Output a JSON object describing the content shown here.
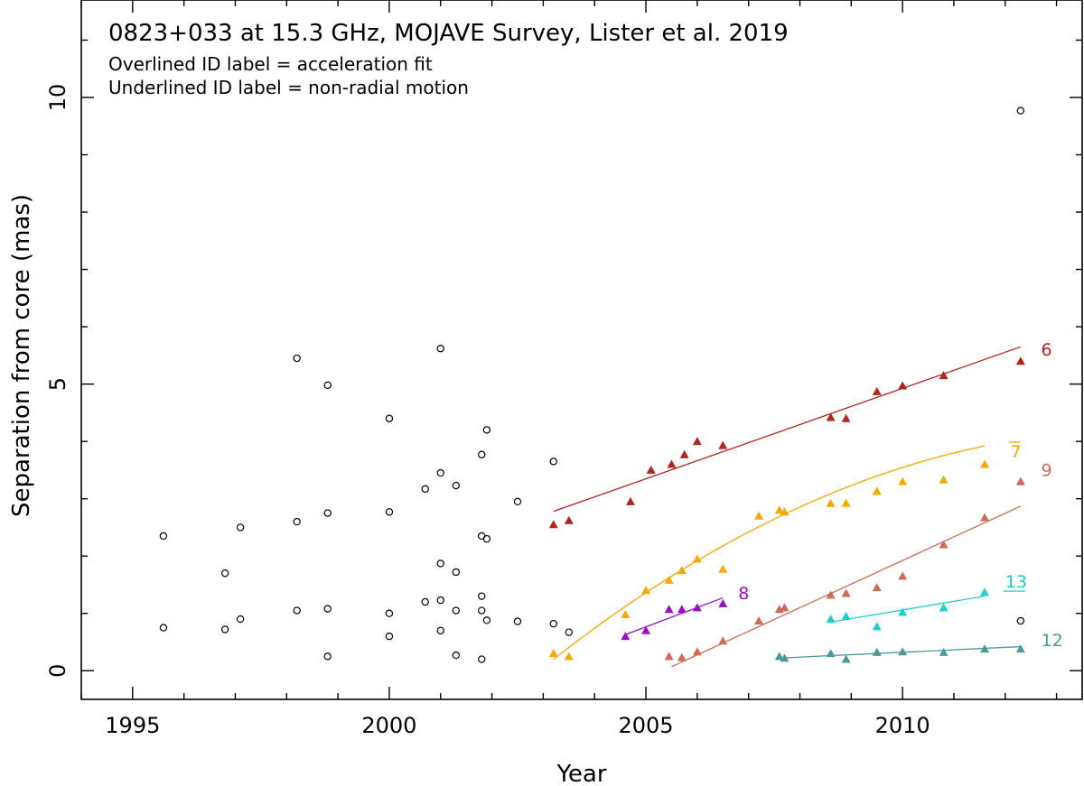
{
  "chart_data": {
    "type": "scatter",
    "title": "0823+033 at 15.3 GHz, MOJAVE Survey, Lister et al. 2019",
    "subtitle_lines": [
      "Overlined ID label = acceleration fit",
      "Underlined ID label = non-radial motion"
    ],
    "xlabel": "Year",
    "ylabel": "Separation from core (mas)",
    "xlim": [
      1994.0,
      2013.5
    ],
    "ylim": [
      -0.5,
      11.7
    ],
    "xticks": [
      1995,
      2000,
      2005,
      2010
    ],
    "yticks": [
      0,
      5,
      10
    ],
    "unassigned": {
      "name": "unassigned components",
      "marker": "open-circle",
      "color": "#000000",
      "points": [
        [
          1995.6,
          0.75
        ],
        [
          1995.6,
          2.35
        ],
        [
          1996.8,
          0.72
        ],
        [
          1996.8,
          1.7
        ],
        [
          1997.1,
          0.9
        ],
        [
          1997.1,
          2.5
        ],
        [
          1998.2,
          1.05
        ],
        [
          1998.2,
          2.6
        ],
        [
          1998.2,
          5.45
        ],
        [
          1998.8,
          0.25
        ],
        [
          1998.8,
          1.08
        ],
        [
          1998.8,
          2.75
        ],
        [
          1998.8,
          4.98
        ],
        [
          2000.0,
          0.6
        ],
        [
          2000.0,
          1.0
        ],
        [
          2000.0,
          2.77
        ],
        [
          2000.0,
          4.4
        ],
        [
          2000.7,
          1.2
        ],
        [
          2000.7,
          3.17
        ],
        [
          2001.0,
          0.7
        ],
        [
          2001.0,
          1.23
        ],
        [
          2001.0,
          1.87
        ],
        [
          2001.0,
          3.45
        ],
        [
          2001.0,
          5.62
        ],
        [
          2001.3,
          0.27
        ],
        [
          2001.3,
          1.05
        ],
        [
          2001.3,
          1.72
        ],
        [
          2001.3,
          3.23
        ],
        [
          2001.8,
          0.2
        ],
        [
          2001.8,
          1.05
        ],
        [
          2001.8,
          1.3
        ],
        [
          2001.8,
          2.35
        ],
        [
          2001.8,
          3.77
        ],
        [
          2001.9,
          0.88
        ],
        [
          2001.9,
          2.3
        ],
        [
          2001.9,
          4.2
        ],
        [
          2002.5,
          0.86
        ],
        [
          2002.5,
          2.95
        ],
        [
          2003.2,
          0.82
        ],
        [
          2003.2,
          3.65
        ],
        [
          2003.5,
          0.67
        ],
        [
          2012.3,
          0.87
        ],
        [
          2012.3,
          9.77
        ]
      ]
    },
    "series": [
      {
        "name": "6",
        "label": "6",
        "label_style": "plain",
        "color": "#b5231f",
        "points": [
          [
            2003.2,
            2.55
          ],
          [
            2003.5,
            2.62
          ],
          [
            2004.7,
            2.95
          ],
          [
            2005.1,
            3.5
          ],
          [
            2005.5,
            3.6
          ],
          [
            2005.75,
            3.77
          ],
          [
            2006.0,
            4.0
          ],
          [
            2006.5,
            3.93
          ],
          [
            2008.6,
            4.42
          ],
          [
            2008.9,
            4.4
          ],
          [
            2009.5,
            4.87
          ],
          [
            2010.0,
            4.97
          ],
          [
            2010.8,
            5.15
          ],
          [
            2012.3,
            5.4
          ]
        ],
        "fit": {
          "kind": "linear",
          "x": [
            2003.2,
            2012.3
          ],
          "y": [
            2.78,
            5.65
          ]
        },
        "label_pos": [
          2012.7,
          5.5
        ]
      },
      {
        "name": "7",
        "label": "7",
        "label_style": "overline",
        "color": "#f5a800",
        "points": [
          [
            2003.2,
            0.3
          ],
          [
            2003.5,
            0.25
          ],
          [
            2004.6,
            0.98
          ],
          [
            2005.0,
            1.4
          ],
          [
            2005.45,
            1.58
          ],
          [
            2005.7,
            1.75
          ],
          [
            2006.0,
            1.95
          ],
          [
            2006.5,
            1.77
          ],
          [
            2007.2,
            2.7
          ],
          [
            2007.6,
            2.8
          ],
          [
            2007.7,
            2.77
          ],
          [
            2008.6,
            2.92
          ],
          [
            2008.9,
            2.92
          ],
          [
            2009.5,
            3.13
          ],
          [
            2010.0,
            3.3
          ],
          [
            2010.8,
            3.33
          ],
          [
            2011.6,
            3.6
          ]
        ],
        "fit": {
          "kind": "quadratic",
          "coef": [
            0.2,
            0.7,
            -0.0306
          ],
          "x0": 2003.2,
          "x": [
            2003.2,
            2011.6
          ]
        },
        "label_pos": [
          2012.1,
          3.72
        ]
      },
      {
        "name": "8",
        "label": "8",
        "label_style": "plain",
        "color": "#9b0fc9",
        "points": [
          [
            2004.6,
            0.6
          ],
          [
            2005.0,
            0.7
          ],
          [
            2005.45,
            1.07
          ],
          [
            2005.7,
            1.07
          ],
          [
            2006.0,
            1.1
          ],
          [
            2006.5,
            1.17
          ]
        ],
        "fit": {
          "kind": "linear",
          "x": [
            2004.6,
            2006.5
          ],
          "y": [
            0.63,
            1.27
          ]
        },
        "label_pos": [
          2006.8,
          1.25
        ]
      },
      {
        "name": "9",
        "label": "9",
        "label_style": "plain",
        "color": "#cd6b55",
        "points": [
          [
            2005.45,
            0.25
          ],
          [
            2005.7,
            0.23
          ],
          [
            2006.0,
            0.33
          ],
          [
            2006.5,
            0.52
          ],
          [
            2007.2,
            0.87
          ],
          [
            2007.6,
            1.07
          ],
          [
            2007.7,
            1.1
          ],
          [
            2008.6,
            1.32
          ],
          [
            2008.9,
            1.35
          ],
          [
            2009.5,
            1.45
          ],
          [
            2010.0,
            1.65
          ],
          [
            2010.8,
            2.2
          ],
          [
            2011.6,
            2.67
          ],
          [
            2012.3,
            3.3
          ]
        ],
        "fit": {
          "kind": "linear",
          "x": [
            2005.5,
            2012.3
          ],
          "y": [
            0.07,
            2.87
          ]
        },
        "label_pos": [
          2012.7,
          3.4
        ]
      },
      {
        "name": "12",
        "label": "12",
        "label_style": "plain",
        "color": "#4a9a9a",
        "points": [
          [
            2007.6,
            0.25
          ],
          [
            2007.7,
            0.22
          ],
          [
            2008.6,
            0.3
          ],
          [
            2008.9,
            0.2
          ],
          [
            2009.5,
            0.32
          ],
          [
            2010.0,
            0.33
          ],
          [
            2010.8,
            0.32
          ],
          [
            2011.6,
            0.38
          ],
          [
            2012.3,
            0.38
          ]
        ],
        "fit": {
          "kind": "linear",
          "x": [
            2007.6,
            2012.3
          ],
          "y": [
            0.22,
            0.42
          ]
        },
        "label_pos": [
          2012.7,
          0.43
        ]
      },
      {
        "name": "13",
        "label": "13",
        "label_style": "underline",
        "color": "#1ccfcf",
        "points": [
          [
            2008.6,
            0.9
          ],
          [
            2008.9,
            0.95
          ],
          [
            2009.5,
            0.77
          ],
          [
            2010.0,
            1.02
          ],
          [
            2010.8,
            1.1
          ],
          [
            2011.6,
            1.37
          ]
        ],
        "fit": {
          "kind": "linear",
          "x": [
            2008.6,
            2011.6
          ],
          "y": [
            0.85,
            1.3
          ]
        },
        "label_pos": [
          2012.0,
          1.45
        ]
      }
    ]
  }
}
